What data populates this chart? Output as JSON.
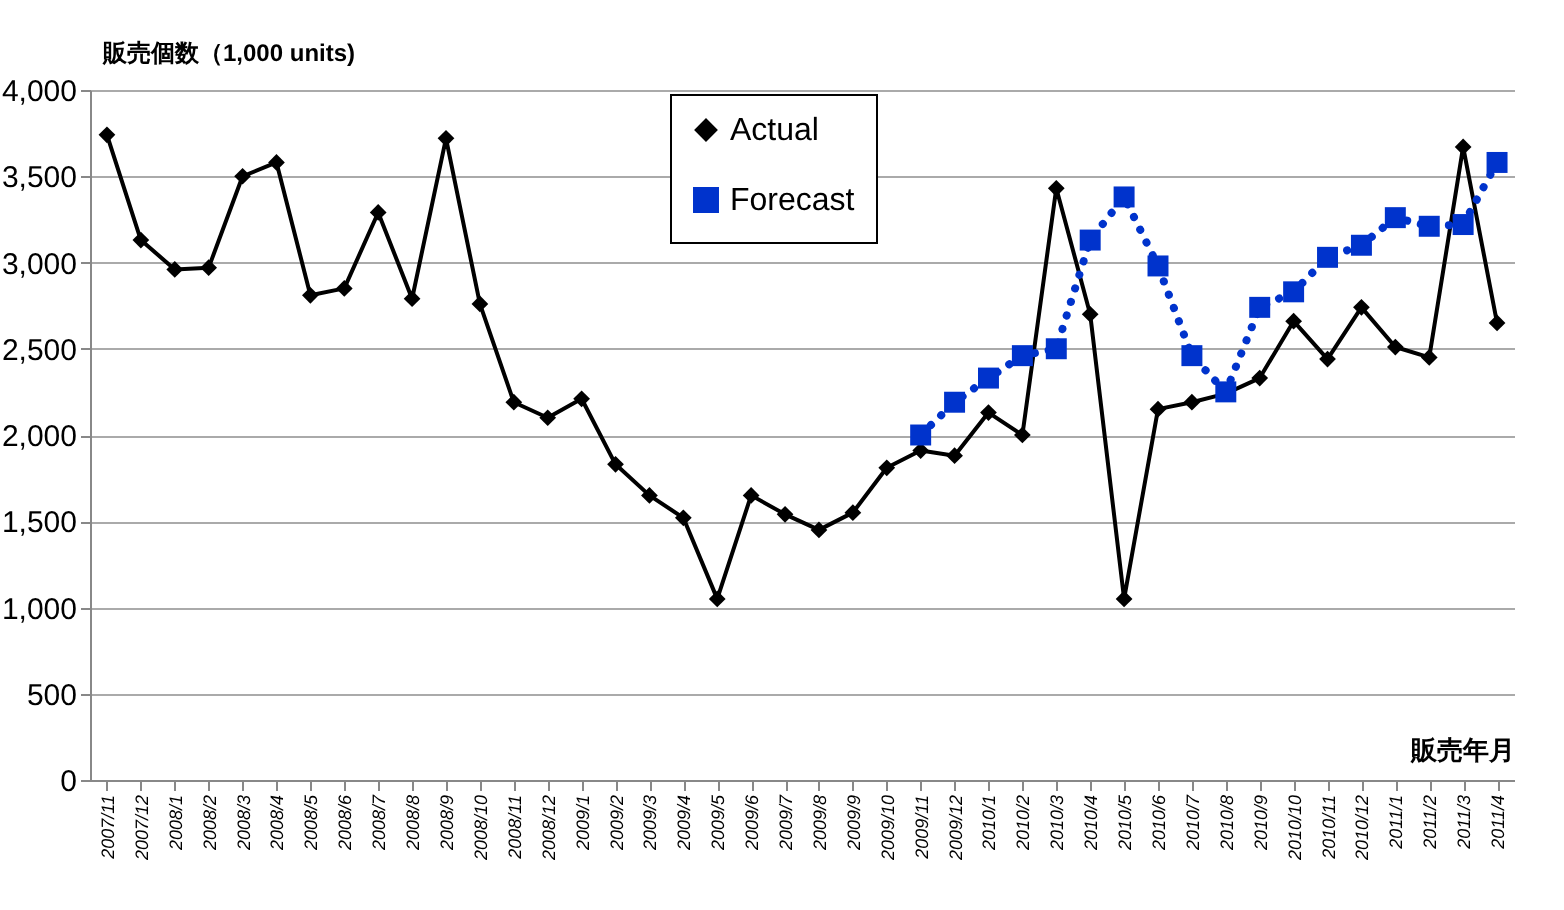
{
  "chart_data": {
    "type": "line",
    "ylabel": "販売個数（1,000 units)",
    "xlabel": "販売年月",
    "categories": [
      "2007/11",
      "2007/12",
      "2008/1",
      "2008/2",
      "2008/3",
      "2008/4",
      "2008/5",
      "2008/6",
      "2008/7",
      "2008/8",
      "2008/9",
      "2008/10",
      "2008/11",
      "2008/12",
      "2009/1",
      "2009/2",
      "2009/3",
      "2009/4",
      "2009/5",
      "2009/6",
      "2009/7",
      "2009/8",
      "2009/9",
      "2009/10",
      "2009/11",
      "2009/12",
      "2010/1",
      "2010/2",
      "2010/3",
      "2010/4",
      "2010/5",
      "2010/6",
      "2010/7",
      "2010/8",
      "2010/9",
      "2010/10",
      "2010/11",
      "2010/12",
      "2011/1",
      "2011/2",
      "2011/3",
      "2011/4"
    ],
    "series": [
      {
        "name": "Actual",
        "color": "#000000",
        "marker": "diamond",
        "line_style": "solid",
        "values": [
          3740,
          3130,
          2960,
          2970,
          3500,
          3580,
          2810,
          2850,
          3290,
          2790,
          3720,
          2760,
          2190,
          2100,
          2210,
          1830,
          1650,
          1520,
          1050,
          1650,
          1540,
          1450,
          1550,
          1810,
          1910,
          1880,
          2130,
          2000,
          3430,
          2700,
          1050,
          2150,
          2190,
          2240,
          2330,
          2660,
          2440,
          2740,
          2510,
          2450,
          3670,
          2650
        ]
      },
      {
        "name": "Forecast",
        "color": "#0033cc",
        "marker": "square",
        "line_style": "dotted",
        "values": [
          null,
          null,
          null,
          null,
          null,
          null,
          null,
          null,
          null,
          null,
          null,
          null,
          null,
          null,
          null,
          null,
          null,
          null,
          null,
          null,
          null,
          null,
          null,
          null,
          2000,
          2190,
          2330,
          2460,
          2500,
          3130,
          3380,
          2980,
          2460,
          2250,
          2740,
          2830,
          3030,
          3100,
          3260,
          3210,
          3220,
          3580
        ]
      }
    ],
    "ylim": [
      0,
      4000
    ],
    "yticks": [
      0,
      500,
      {
        "value": 1000,
        "label": "1,000"
      },
      {
        "value": 1500,
        "label": "1,500"
      },
      {
        "value": 2000,
        "label": "2,000"
      },
      {
        "value": 2500,
        "label": "2,500"
      },
      {
        "value": 3000,
        "label": "3,000"
      },
      {
        "value": 3500,
        "label": "3,500"
      },
      {
        "value": 4000,
        "label": "4,000"
      }
    ],
    "grid": "y",
    "legend": "top"
  }
}
